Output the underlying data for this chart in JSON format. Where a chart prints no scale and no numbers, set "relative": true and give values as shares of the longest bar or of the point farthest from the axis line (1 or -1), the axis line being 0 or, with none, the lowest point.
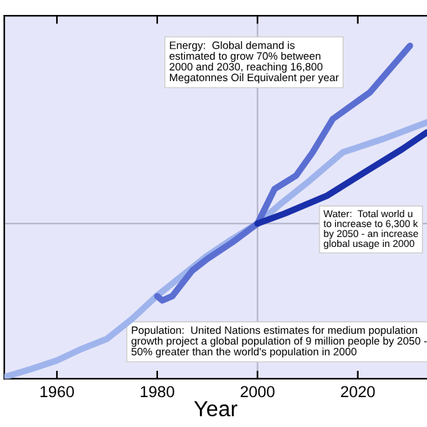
{
  "chart_data": {
    "type": "line",
    "relative": true,
    "xlabel": "Year",
    "xlim": [
      1949.5,
      2033.8
    ],
    "xticks": [
      1960,
      1980,
      2000,
      2020
    ],
    "series": [
      {
        "color": "#9fb4ec",
        "x": [
          1949.5,
          1955,
          1960,
          1965,
          1970,
          1975,
          1980,
          1985,
          1990,
          1995,
          2000,
          2005,
          2010,
          2017,
          2025,
          2033.8
        ],
        "values": [
          0.005,
          0.03,
          0.055,
          0.09,
          0.12,
          0.18,
          0.25,
          0.31,
          0.37,
          0.42,
          0.466,
          0.53,
          0.59,
          0.68,
          0.72,
          0.77
        ]
      },
      {
        "color": "#5b6fd2",
        "x": [
          1980,
          1981,
          1983,
          1987,
          1990,
          1995,
          2000,
          2003.4,
          2007.7,
          2011,
          2015,
          2022.4,
          2030.4
        ],
        "values": [
          0.248,
          0.235,
          0.248,
          0.325,
          0.36,
          0.41,
          0.466,
          0.57,
          0.61,
          0.68,
          0.78,
          0.86,
          1.0
        ]
      },
      {
        "color": "#1a30aa",
        "x": [
          2000,
          2005.4,
          2013.9,
          2022.4,
          2028.9,
          2033.8
        ],
        "values": [
          0.466,
          0.496,
          0.55,
          0.63,
          0.69,
          0.74
        ]
      }
    ],
    "ref_lines": [
      {
        "axis": "x",
        "value": 2000,
        "color": "#b8b8cc"
      },
      {
        "axis": "y",
        "value": 0.466,
        "color": "#b8b8cc"
      }
    ],
    "annotations": [
      "Energy:  Global demand is estimated to grow 70% between 2000 and 2030, reaching 16,800 Megatonnes Oil Equivalent per year",
      "Water:  Total world u\nto increase to 6,300 k\nby 2050 - an increase\nglobal usage in 2000",
      "Population:  United Nations estimates for medium population growth project a global population of 9 million people by 2050 - 50% greater than the world's population in 2000"
    ],
    "grid": false
  }
}
